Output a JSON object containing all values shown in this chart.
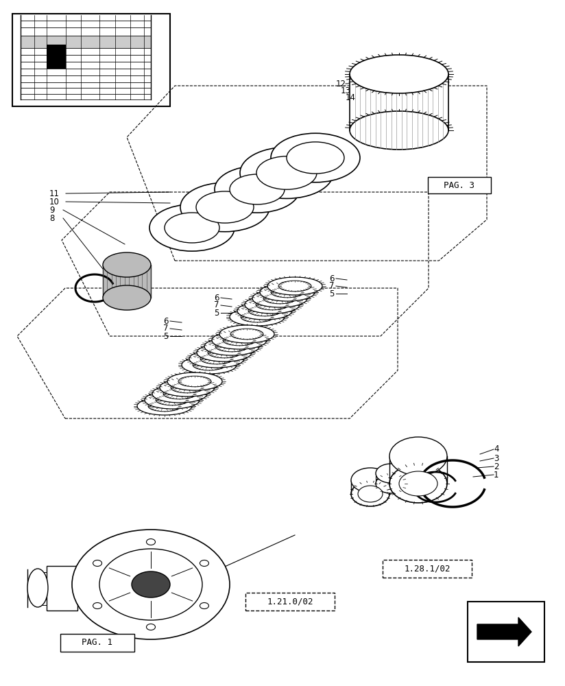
{
  "bg_color": "#ffffff",
  "line_color": "#000000",
  "light_gray": "#aaaaaa",
  "dark_gray": "#555555",
  "fig_width": 8.24,
  "fig_height": 10.0,
  "labels": {
    "pag1": "PAG. 1",
    "pag3": "PAG. 3",
    "ref1": "1.21.0/02",
    "ref2": "1.28.1/02"
  },
  "part_numbers": [
    "1",
    "2",
    "3",
    "4",
    "5",
    "6",
    "7",
    "8",
    "9",
    "10",
    "11",
    "12",
    "13",
    "14"
  ]
}
